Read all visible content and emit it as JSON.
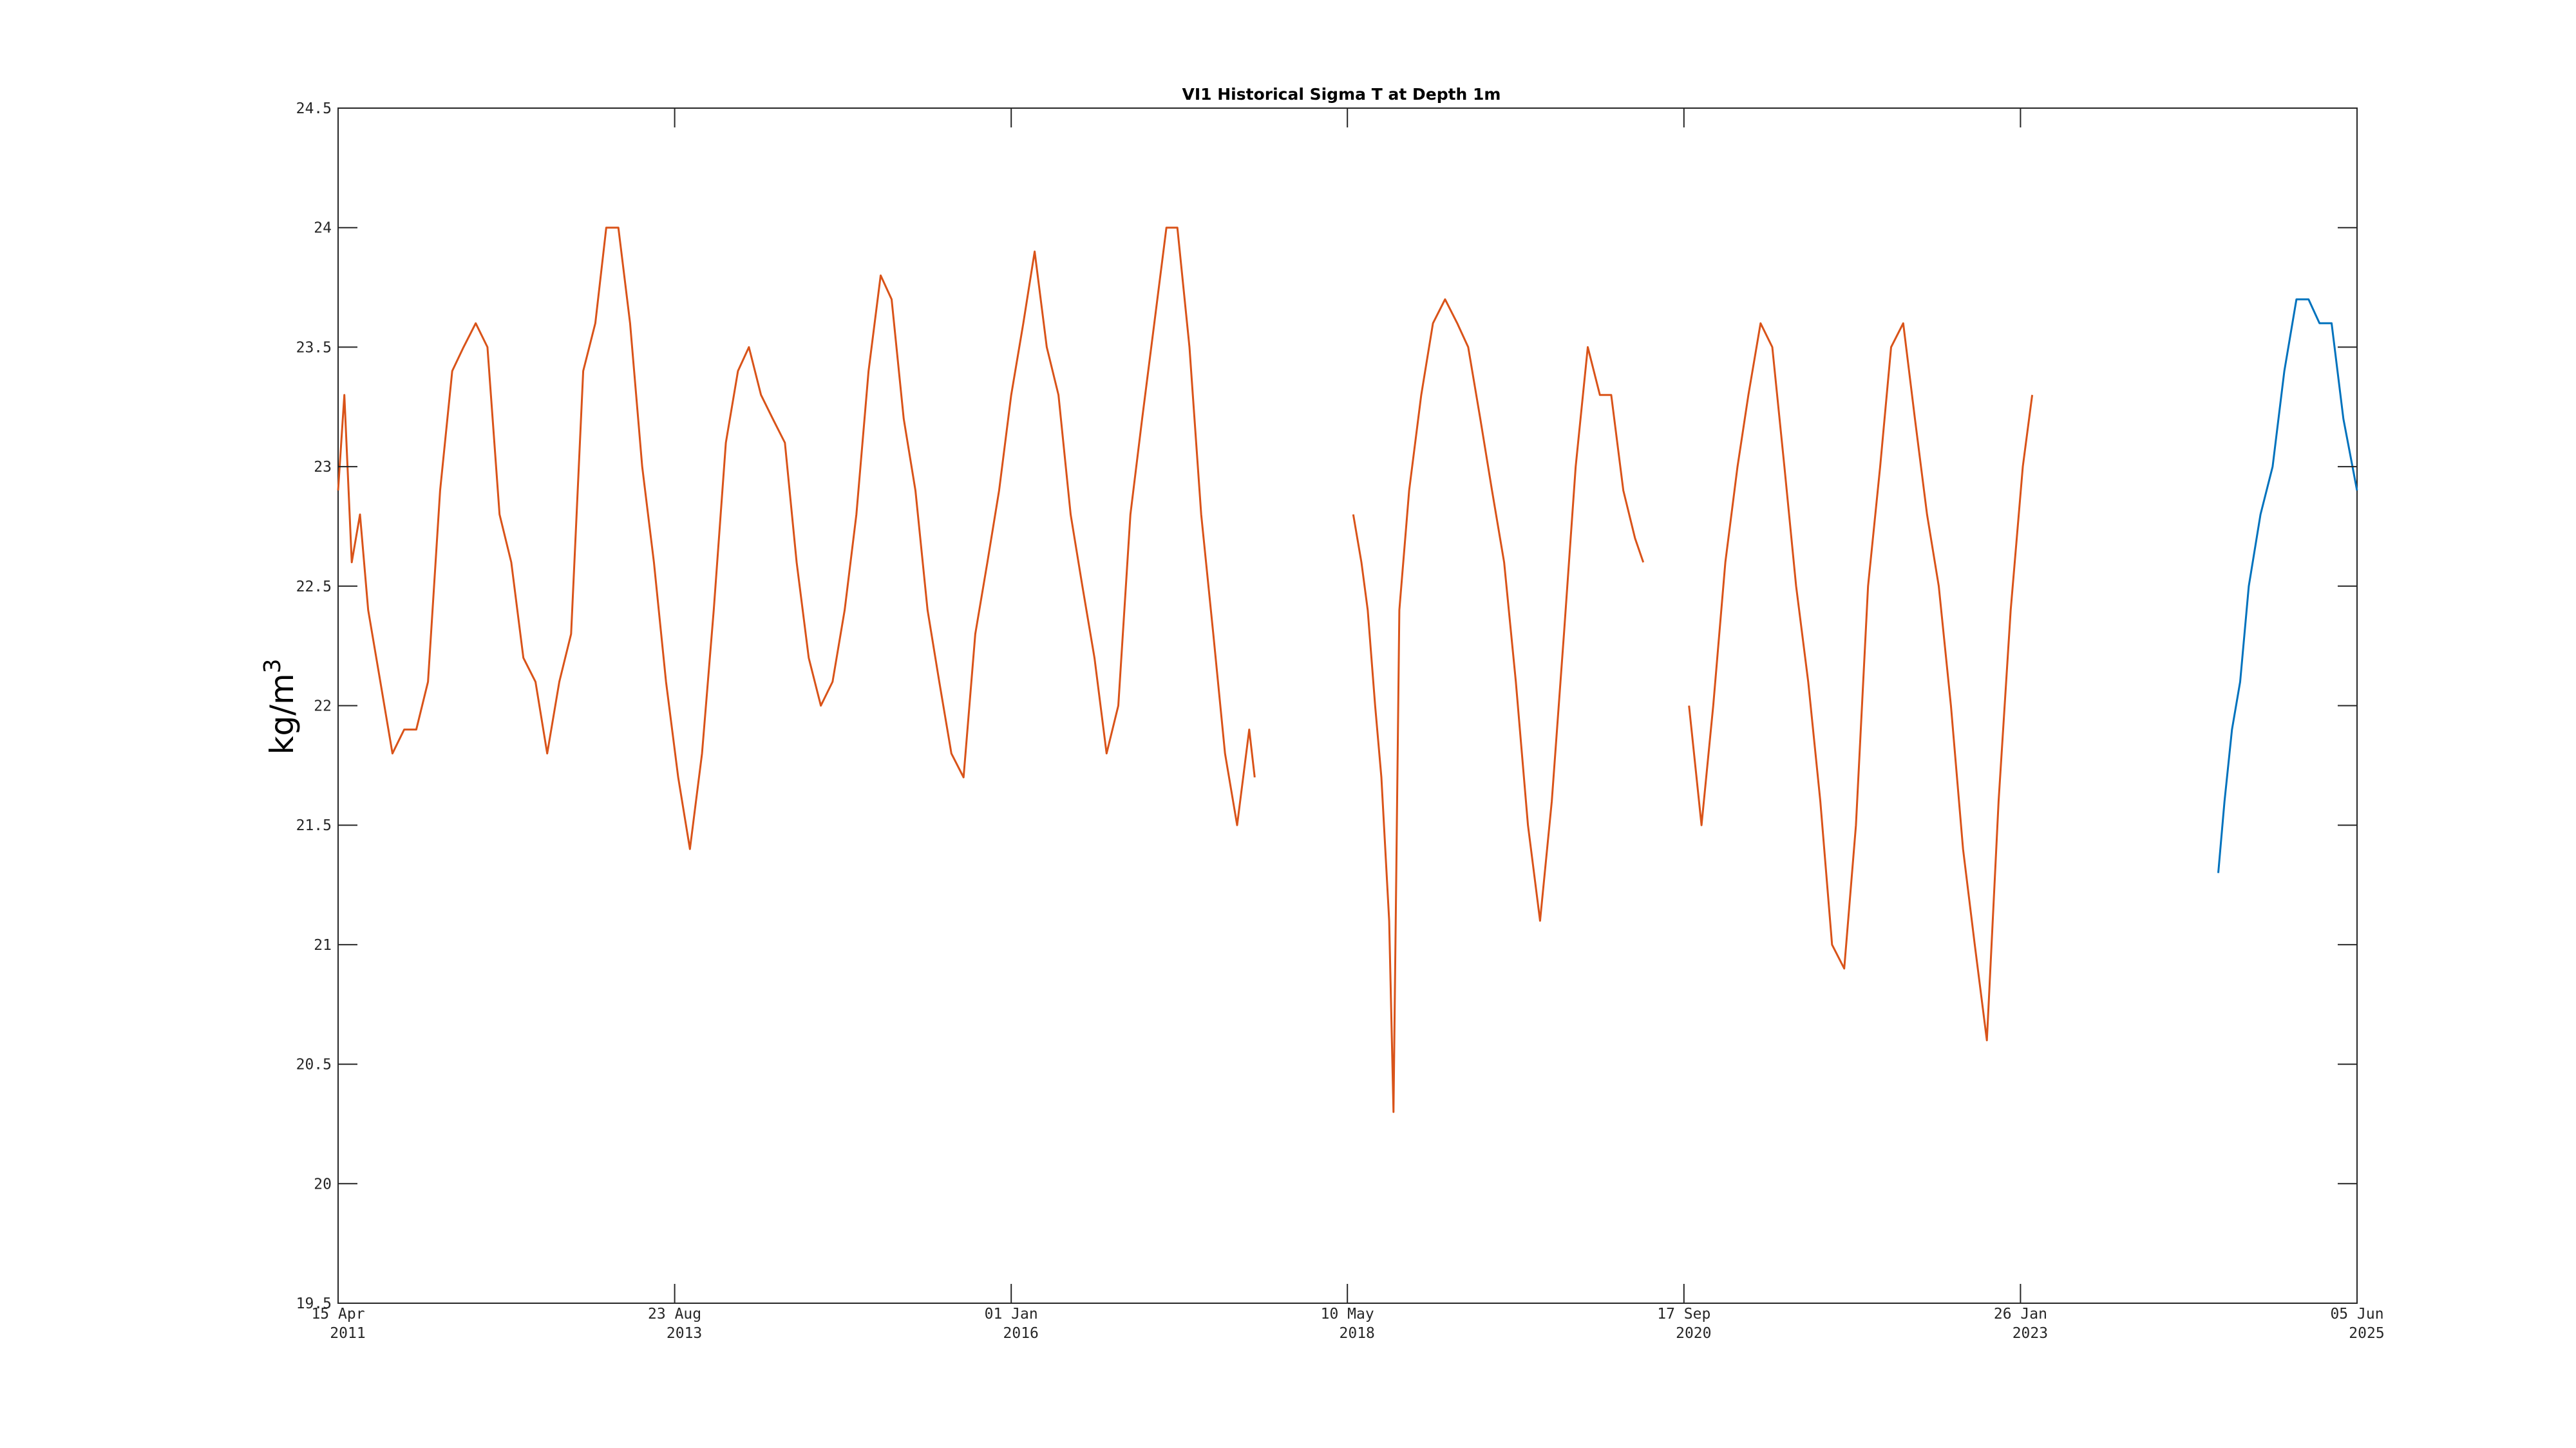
{
  "chart_data": {
    "type": "line",
    "title": "VI1 Historical Sigma T at Depth 1m",
    "ylabel_base": "kg/m",
    "ylabel_sup": "3",
    "xlabel": "",
    "ylim": [
      19.5,
      24.5
    ],
    "yticks": [
      "19.5",
      "20",
      "20.5",
      "21",
      "21.5",
      "22",
      "22.5",
      "23",
      "23.5",
      "24",
      "24.5"
    ],
    "xlim": [
      "2011-04-15",
      "2025-06-05"
    ],
    "xticks": [
      {
        "date": "2011-04-15",
        "line1": "15 Apr",
        "line2": "2011"
      },
      {
        "date": "2013-08-23",
        "line1": "23 Aug",
        "line2": "2013"
      },
      {
        "date": "2016-01-01",
        "line1": "01 Jan",
        "line2": "2016"
      },
      {
        "date": "2018-05-10",
        "line1": "10 May",
        "line2": "2018"
      },
      {
        "date": "2020-09-17",
        "line1": "17 Sep",
        "line2": "2020"
      },
      {
        "date": "2023-01-26",
        "line1": "26 Jan",
        "line2": "2023"
      },
      {
        "date": "2025-06-05",
        "line1": "05 Jun",
        "line2": "2025"
      }
    ],
    "grid": false,
    "legend": "none",
    "series": [
      {
        "color": "#D95319",
        "segments": [
          [
            [
              "2011-04-15",
              22.9
            ],
            [
              "2011-05-01",
              23.3
            ],
            [
              "2011-05-20",
              22.6
            ],
            [
              "2011-06-10",
              22.8
            ],
            [
              "2011-07-01",
              22.4
            ],
            [
              "2011-08-01",
              22.1
            ],
            [
              "2011-09-01",
              21.8
            ],
            [
              "2011-10-01",
              21.9
            ],
            [
              "2011-11-01",
              21.9
            ],
            [
              "2011-12-01",
              22.1
            ],
            [
              "2012-01-01",
              22.9
            ],
            [
              "2012-02-01",
              23.4
            ],
            [
              "2012-03-01",
              23.5
            ],
            [
              "2012-04-01",
              23.6
            ],
            [
              "2012-05-01",
              23.5
            ],
            [
              "2012-06-01",
              22.8
            ],
            [
              "2012-07-01",
              22.6
            ],
            [
              "2012-08-01",
              22.2
            ],
            [
              "2012-09-01",
              22.1
            ],
            [
              "2012-10-01",
              21.8
            ],
            [
              "2012-11-01",
              22.1
            ],
            [
              "2012-12-01",
              22.3
            ],
            [
              "2013-01-01",
              23.4
            ],
            [
              "2013-02-01",
              23.6
            ],
            [
              "2013-03-01",
              24.0
            ],
            [
              "2013-04-01",
              24.0
            ],
            [
              "2013-05-01",
              23.6
            ],
            [
              "2013-06-01",
              23.0
            ],
            [
              "2013-07-01",
              22.6
            ],
            [
              "2013-08-01",
              22.1
            ],
            [
              "2013-09-01",
              21.7
            ],
            [
              "2013-10-01",
              21.4
            ],
            [
              "2013-11-01",
              21.8
            ],
            [
              "2013-12-01",
              22.4
            ],
            [
              "2014-01-01",
              23.1
            ],
            [
              "2014-02-01",
              23.4
            ],
            [
              "2014-03-01",
              23.5
            ],
            [
              "2014-04-01",
              23.3
            ],
            [
              "2014-05-01",
              23.2
            ],
            [
              "2014-06-01",
              23.1
            ],
            [
              "2014-07-01",
              22.6
            ],
            [
              "2014-08-01",
              22.2
            ],
            [
              "2014-09-01",
              22.0
            ],
            [
              "2014-10-01",
              22.1
            ],
            [
              "2014-11-01",
              22.4
            ],
            [
              "2014-12-01",
              22.8
            ],
            [
              "2015-01-01",
              23.4
            ],
            [
              "2015-02-01",
              23.8
            ],
            [
              "2015-03-01",
              23.7
            ],
            [
              "2015-04-01",
              23.2
            ],
            [
              "2015-05-01",
              22.9
            ],
            [
              "2015-06-01",
              22.4
            ],
            [
              "2015-07-01",
              22.1
            ],
            [
              "2015-08-01",
              21.8
            ],
            [
              "2015-09-01",
              21.7
            ],
            [
              "2015-10-01",
              22.3
            ],
            [
              "2015-11-01",
              22.6
            ],
            [
              "2015-12-01",
              22.9
            ],
            [
              "2016-01-01",
              23.3
            ],
            [
              "2016-02-01",
              23.6
            ],
            [
              "2016-03-01",
              23.9
            ],
            [
              "2016-04-01",
              23.5
            ],
            [
              "2016-05-01",
              23.3
            ],
            [
              "2016-06-01",
              22.8
            ],
            [
              "2016-07-01",
              22.5
            ],
            [
              "2016-08-01",
              22.2
            ],
            [
              "2016-09-01",
              21.8
            ],
            [
              "2016-10-01",
              22.0
            ],
            [
              "2016-11-01",
              22.8
            ],
            [
              "2016-12-01",
              23.2
            ],
            [
              "2017-01-01",
              23.6
            ],
            [
              "2017-02-01",
              24.0
            ],
            [
              "2017-03-01",
              24.0
            ],
            [
              "2017-04-01",
              23.5
            ],
            [
              "2017-05-01",
              22.8
            ],
            [
              "2017-06-01",
              22.3
            ],
            [
              "2017-07-01",
              21.8
            ],
            [
              "2017-08-01",
              21.5
            ],
            [
              "2017-09-01",
              21.9
            ],
            [
              "2017-09-15",
              21.7
            ]
          ],
          [
            [
              "2018-05-25",
              22.8
            ],
            [
              "2018-06-15",
              22.6
            ],
            [
              "2018-07-01",
              22.4
            ],
            [
              "2018-07-20",
              22.0
            ],
            [
              "2018-08-05",
              21.7
            ],
            [
              "2018-08-25",
              21.1
            ],
            [
              "2018-09-05",
              20.3
            ],
            [
              "2018-09-20",
              22.4
            ],
            [
              "2018-10-15",
              22.9
            ],
            [
              "2018-11-15",
              23.3
            ],
            [
              "2018-12-15",
              23.6
            ],
            [
              "2019-01-15",
              23.7
            ],
            [
              "2019-02-15",
              23.6
            ],
            [
              "2019-03-15",
              23.5
            ],
            [
              "2019-04-15",
              23.2
            ],
            [
              "2019-05-15",
              22.9
            ],
            [
              "2019-06-15",
              22.6
            ],
            [
              "2019-07-15",
              22.1
            ],
            [
              "2019-08-15",
              21.5
            ],
            [
              "2019-09-15",
              21.1
            ],
            [
              "2019-10-15",
              21.6
            ],
            [
              "2019-11-15",
              22.3
            ],
            [
              "2019-12-15",
              23.0
            ],
            [
              "2020-01-15",
              23.5
            ],
            [
              "2020-02-15",
              23.3
            ],
            [
              "2020-03-15",
              23.3
            ],
            [
              "2020-04-15",
              22.9
            ],
            [
              "2020-05-15",
              22.7
            ],
            [
              "2020-06-05",
              22.6
            ]
          ],
          [
            [
              "2020-09-30",
              22.0
            ],
            [
              "2020-11-01",
              21.5
            ],
            [
              "2020-12-01",
              22.0
            ],
            [
              "2021-01-01",
              22.6
            ],
            [
              "2021-02-01",
              23.0
            ],
            [
              "2021-03-01",
              23.3
            ],
            [
              "2021-04-01",
              23.6
            ],
            [
              "2021-05-01",
              23.5
            ],
            [
              "2021-06-01",
              23.0
            ],
            [
              "2021-07-01",
              22.5
            ],
            [
              "2021-08-01",
              22.1
            ],
            [
              "2021-09-01",
              21.6
            ],
            [
              "2021-10-01",
              21.0
            ],
            [
              "2021-11-01",
              20.9
            ],
            [
              "2021-12-01",
              21.5
            ],
            [
              "2022-01-01",
              22.5
            ],
            [
              "2022-02-01",
              23.0
            ],
            [
              "2022-03-01",
              23.5
            ],
            [
              "2022-04-01",
              23.6
            ],
            [
              "2022-05-01",
              23.2
            ],
            [
              "2022-06-01",
              22.8
            ],
            [
              "2022-07-01",
              22.5
            ],
            [
              "2022-08-01",
              22.0
            ],
            [
              "2022-09-01",
              21.4
            ],
            [
              "2022-10-01",
              21.0
            ],
            [
              "2022-11-01",
              20.6
            ],
            [
              "2022-12-01",
              21.6
            ],
            [
              "2023-01-01",
              22.4
            ],
            [
              "2023-02-01",
              23.0
            ],
            [
              "2023-02-25",
              23.3
            ]
          ]
        ]
      },
      {
        "color": "#0072BD",
        "segments": [
          [
            [
              "2024-06-15",
              21.3
            ],
            [
              "2024-07-01",
              21.6
            ],
            [
              "2024-07-20",
              21.9
            ],
            [
              "2024-08-10",
              22.1
            ],
            [
              "2024-09-01",
              22.5
            ],
            [
              "2024-10-01",
              22.8
            ],
            [
              "2024-11-01",
              23.0
            ],
            [
              "2024-12-01",
              23.4
            ],
            [
              "2025-01-01",
              23.7
            ],
            [
              "2025-02-01",
              23.7
            ],
            [
              "2025-03-01",
              23.6
            ],
            [
              "2025-04-01",
              23.6
            ],
            [
              "2025-05-01",
              23.2
            ],
            [
              "2025-06-05",
              22.9
            ]
          ]
        ]
      }
    ]
  }
}
